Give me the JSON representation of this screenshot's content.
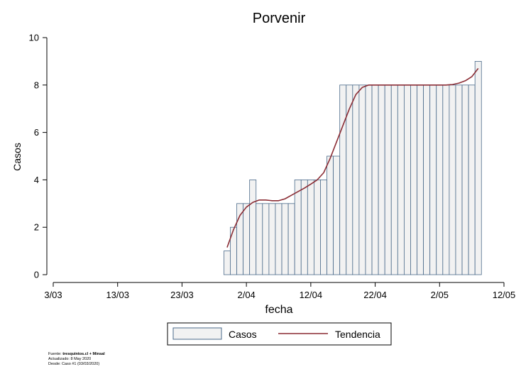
{
  "chart_data": {
    "type": "bar",
    "title": "Porvenir",
    "xlabel": "fecha",
    "ylabel": "Casos",
    "ylim": [
      0,
      10
    ],
    "yticks": [
      0,
      2,
      4,
      6,
      8,
      10
    ],
    "xlim": [
      "2020-03-03",
      "2020-05-12"
    ],
    "xticks": [
      "3/03",
      "13/03",
      "23/03",
      "2/04",
      "12/04",
      "22/04",
      "2/05",
      "12/05"
    ],
    "grid": false,
    "legend_position": "bottom",
    "series": [
      {
        "name": "Casos",
        "type": "bar",
        "color": "#f2f2f2",
        "edge_color": "#4a6a8a",
        "x": [
          "2020-03-30",
          "2020-03-31",
          "2020-04-01",
          "2020-04-02",
          "2020-04-03",
          "2020-04-04",
          "2020-04-05",
          "2020-04-06",
          "2020-04-07",
          "2020-04-08",
          "2020-04-09",
          "2020-04-10",
          "2020-04-11",
          "2020-04-12",
          "2020-04-13",
          "2020-04-14",
          "2020-04-15",
          "2020-04-16",
          "2020-04-17",
          "2020-04-18",
          "2020-04-19",
          "2020-04-20",
          "2020-04-21",
          "2020-04-22",
          "2020-04-23",
          "2020-04-24",
          "2020-04-25",
          "2020-04-26",
          "2020-04-27",
          "2020-04-28",
          "2020-04-29",
          "2020-04-30",
          "2020-05-01",
          "2020-05-02",
          "2020-05-03",
          "2020-05-04",
          "2020-05-05",
          "2020-05-06",
          "2020-05-07",
          "2020-05-08"
        ],
        "values": [
          1,
          2,
          3,
          3,
          4,
          3,
          3,
          3,
          3,
          3,
          3,
          4,
          4,
          4,
          4,
          4,
          5,
          5,
          8,
          8,
          8,
          8,
          8,
          8,
          8,
          8,
          8,
          8,
          8,
          8,
          8,
          8,
          8,
          8,
          8,
          8,
          8,
          8,
          8,
          9
        ]
      },
      {
        "name": "Tendencia",
        "type": "line",
        "color": "#8b2d35",
        "x": [
          "2020-03-30",
          "2020-03-31",
          "2020-04-01",
          "2020-04-02",
          "2020-04-03",
          "2020-04-04",
          "2020-04-05",
          "2020-04-06",
          "2020-04-07",
          "2020-04-08",
          "2020-04-09",
          "2020-04-10",
          "2020-04-11",
          "2020-04-12",
          "2020-04-13",
          "2020-04-14",
          "2020-04-15",
          "2020-04-16",
          "2020-04-17",
          "2020-04-18",
          "2020-04-19",
          "2020-04-20",
          "2020-04-21",
          "2020-04-22",
          "2020-04-23",
          "2020-04-24",
          "2020-04-25",
          "2020-04-26",
          "2020-04-27",
          "2020-04-28",
          "2020-04-29",
          "2020-04-30",
          "2020-05-01",
          "2020-05-02",
          "2020-05-03",
          "2020-05-04",
          "2020-05-05",
          "2020-05-06",
          "2020-05-07",
          "2020-05-08"
        ],
        "values": [
          1.15,
          1.9,
          2.5,
          2.85,
          3.05,
          3.15,
          3.15,
          3.12,
          3.12,
          3.2,
          3.35,
          3.5,
          3.65,
          3.82,
          4.0,
          4.3,
          4.9,
          5.6,
          6.3,
          7.0,
          7.6,
          7.9,
          8.0,
          8.0,
          8.0,
          8.0,
          8.0,
          8.0,
          8.0,
          8.0,
          8.0,
          8.0,
          8.0,
          8.0,
          8.0,
          8.02,
          8.08,
          8.18,
          8.35,
          8.7
        ]
      }
    ]
  },
  "footer": {
    "source_prefix": "Fuente: ",
    "source_bold": "tresquintos.cl + Minsal",
    "updated": "Actualizado: 8 May 2020",
    "since": "Desde: Caso #1  (03/03/2020)"
  }
}
